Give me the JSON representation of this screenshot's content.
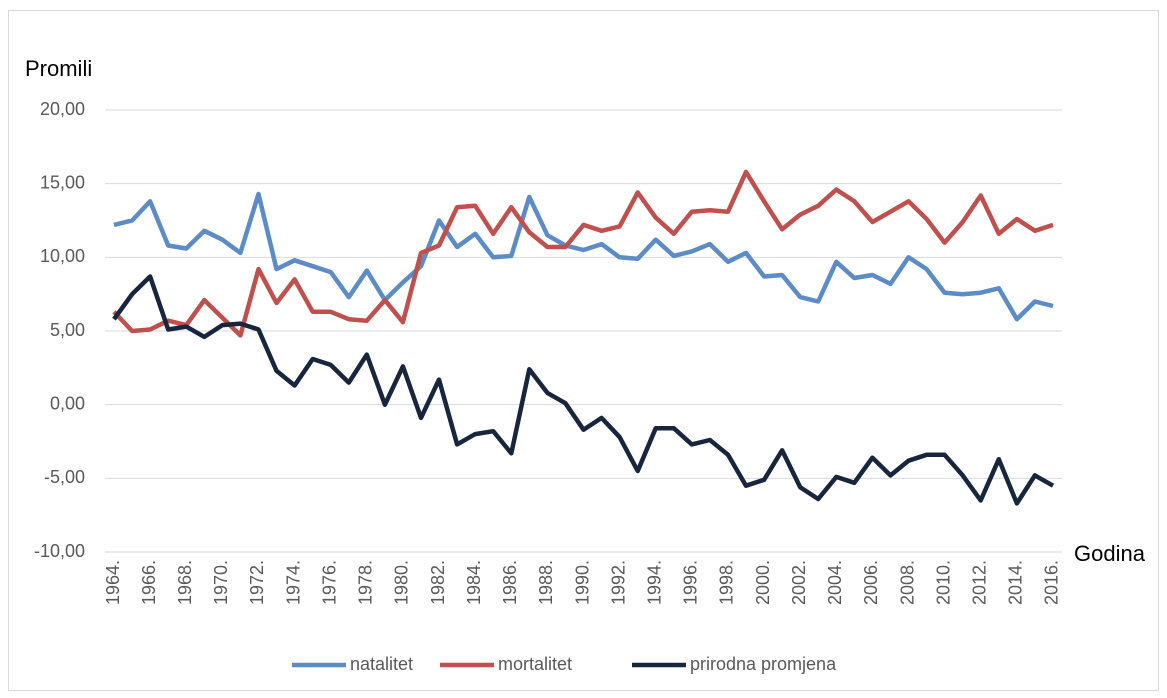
{
  "chart_data": {
    "type": "line",
    "ylabel": "Promili",
    "xlabel": "Godina",
    "categories": [
      "1964.",
      null,
      "1966.",
      null,
      "1968.",
      null,
      "1970.",
      null,
      "1972.",
      null,
      "1974.",
      null,
      "1976.",
      null,
      "1978.",
      null,
      "1980.",
      null,
      "1982.",
      null,
      "1984.",
      null,
      "1986.",
      null,
      "1988.",
      null,
      "1990.",
      null,
      "1992.",
      null,
      "1994.",
      null,
      "1996.",
      null,
      "1998.",
      null,
      "2000.",
      null,
      "2002.",
      null,
      "2004.",
      null,
      "2006.",
      null,
      "2008.",
      null,
      "2010.",
      null,
      "2012.",
      null,
      "2014.",
      null,
      "2016."
    ],
    "series": [
      {
        "name": "natalitet",
        "color": "#5b8cc8",
        "values": [
          12.2,
          12.5,
          13.8,
          10.8,
          10.6,
          11.8,
          11.2,
          10.3,
          14.3,
          9.2,
          9.8,
          9.4,
          9.0,
          7.3,
          9.1,
          7.1,
          8.3,
          9.4,
          12.5,
          10.7,
          11.6,
          10.0,
          10.1,
          14.1,
          11.5,
          10.8,
          10.5,
          10.9,
          10.0,
          9.9,
          11.2,
          10.1,
          10.4,
          10.9,
          9.7,
          10.3,
          8.7,
          8.8,
          7.3,
          7.0,
          9.7,
          8.6,
          8.8,
          8.2,
          10.0,
          9.2,
          7.6,
          7.5,
          7.6,
          7.9,
          5.8,
          7.0,
          6.7
        ]
      },
      {
        "name": "mortalitet",
        "color": "#c0504d",
        "values": [
          6.3,
          5.0,
          5.1,
          5.7,
          5.4,
          7.1,
          5.9,
          4.7,
          9.2,
          6.9,
          8.5,
          6.3,
          6.3,
          5.8,
          5.7,
          7.1,
          5.6,
          10.3,
          10.8,
          13.4,
          13.5,
          11.6,
          13.4,
          11.7,
          10.7,
          10.7,
          12.2,
          11.8,
          12.1,
          14.4,
          12.7,
          11.6,
          13.1,
          13.2,
          13.1,
          15.8,
          13.8,
          11.9,
          12.9,
          13.5,
          14.6,
          13.8,
          12.4,
          13.1,
          13.8,
          12.6,
          11.0,
          12.4,
          14.2,
          11.6,
          12.6,
          11.8,
          12.2
        ]
      },
      {
        "name": "prirodna promjena",
        "color": "#17263d",
        "values": [
          5.8,
          7.5,
          8.7,
          5.1,
          5.3,
          4.6,
          5.4,
          5.5,
          5.1,
          2.3,
          1.3,
          3.1,
          2.7,
          1.5,
          3.4,
          0.0,
          2.6,
          -0.9,
          1.7,
          -2.7,
          -2.0,
          -1.8,
          -3.3,
          2.4,
          0.8,
          0.1,
          -1.7,
          -0.9,
          -2.2,
          -4.5,
          -1.6,
          -1.6,
          -2.7,
          -2.4,
          -3.4,
          -5.5,
          -5.1,
          -3.1,
          -5.6,
          -6.4,
          -4.9,
          -5.3,
          -3.6,
          -4.8,
          -3.8,
          -3.4,
          -3.4,
          -4.8,
          -6.5,
          -3.7,
          -6.7,
          -4.8,
          -5.5
        ]
      }
    ],
    "ylim": [
      -10,
      20
    ],
    "yticks": [
      {
        "value": -10,
        "label": "-10,00"
      },
      {
        "value": -5,
        "label": "-5,00"
      },
      {
        "value": 0,
        "label": "0,00"
      },
      {
        "value": 5,
        "label": "5,00"
      },
      {
        "value": 10,
        "label": "10,00"
      },
      {
        "value": 15,
        "label": "15,00"
      },
      {
        "value": 20,
        "label": "20,00"
      }
    ],
    "grid": true,
    "legend": "bottom"
  }
}
